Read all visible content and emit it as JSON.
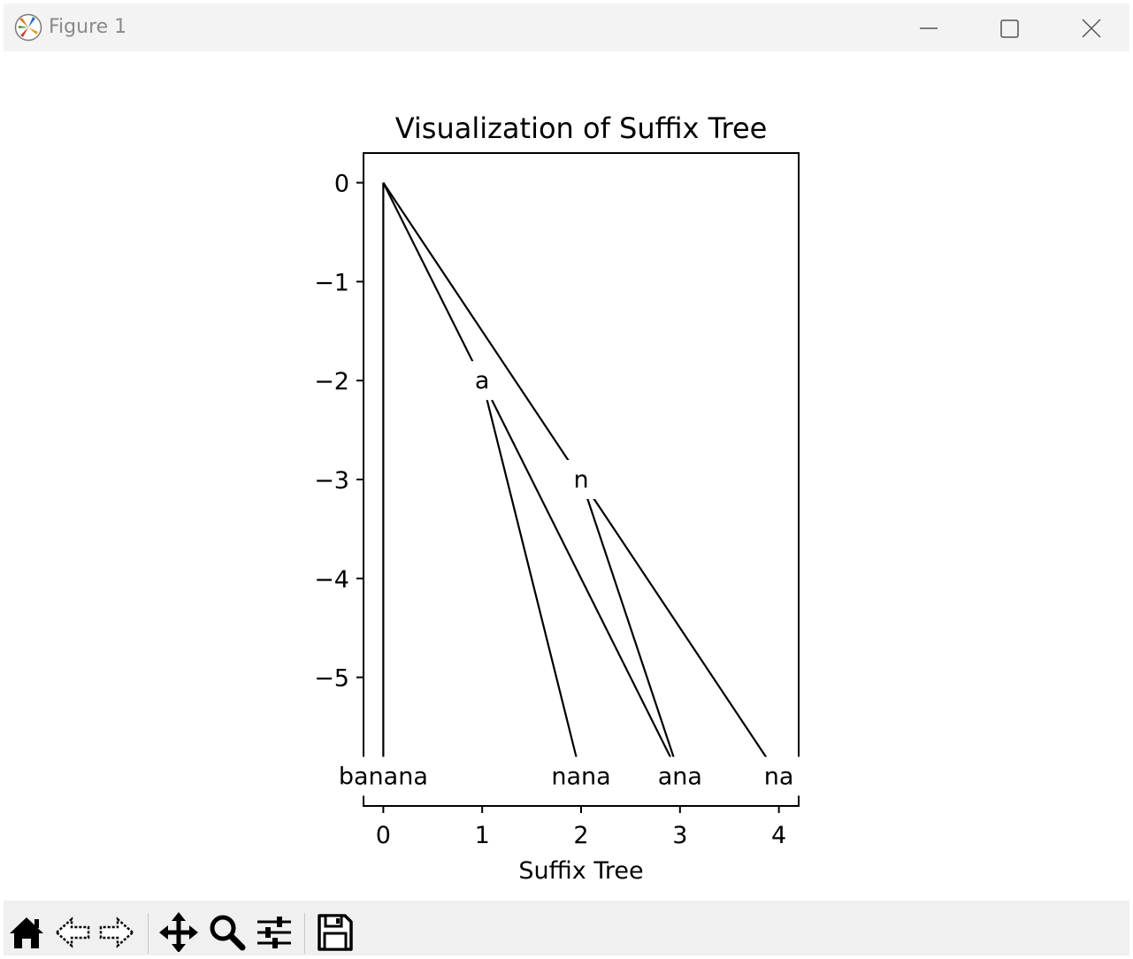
{
  "window": {
    "title": "Figure 1",
    "controls": [
      "minimize",
      "maximize",
      "close"
    ]
  },
  "chart_data": {
    "type": "tree",
    "title": "Visualization of Suffix Tree",
    "xlabel": "Suffix Tree",
    "ylabel": "",
    "xlim": [
      -0.2,
      4.2
    ],
    "ylim": [
      -6.3,
      0.3
    ],
    "xticks": [
      0,
      1,
      2,
      3,
      4
    ],
    "xtick_labels": [
      "0",
      "1",
      "2",
      "3",
      "4"
    ],
    "yticks": [
      0,
      -1,
      -2,
      -3,
      -4,
      -5
    ],
    "ytick_labels": [
      "0",
      "−1",
      "−2",
      "−3",
      "−4",
      "−5"
    ],
    "grid": false,
    "nodes": [
      {
        "id": "root",
        "label": "",
        "x": 0,
        "y": 0
      },
      {
        "id": "a",
        "label": "a",
        "x": 1,
        "y": -2
      },
      {
        "id": "n",
        "label": "n",
        "x": 2,
        "y": -3
      },
      {
        "id": "banana",
        "label": "banana",
        "x": 0,
        "y": -6
      },
      {
        "id": "nana",
        "label": "nana",
        "x": 2,
        "y": -6
      },
      {
        "id": "ana",
        "label": "ana",
        "x": 3,
        "y": -6
      },
      {
        "id": "na",
        "label": "na",
        "x": 4,
        "y": -6
      }
    ],
    "edges": [
      [
        "root",
        "banana"
      ],
      [
        "root",
        "a"
      ],
      [
        "root",
        "n"
      ],
      [
        "a",
        "nana"
      ],
      [
        "a",
        "ana"
      ],
      [
        "n",
        "ana"
      ],
      [
        "n",
        "na"
      ]
    ]
  },
  "toolbar": {
    "buttons": [
      "home-icon",
      "back-icon",
      "forward-icon",
      "pan-icon",
      "zoom-icon",
      "configure-subplots-icon",
      "save-icon"
    ]
  }
}
